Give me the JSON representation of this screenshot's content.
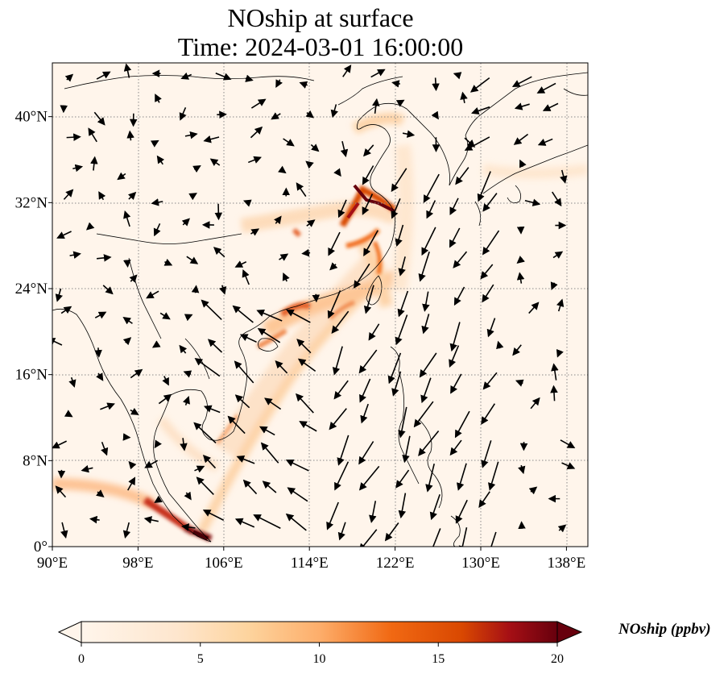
{
  "title": {
    "line1": "NOship at surface",
    "line2": "Time: 2024-03-01 16:00:00"
  },
  "map": {
    "lon_range": [
      90,
      140
    ],
    "lat_range": [
      0,
      45
    ],
    "x_ticks": [
      "90°E",
      "98°E",
      "106°E",
      "114°E",
      "122°E",
      "130°E",
      "138°E"
    ],
    "x_tick_values": [
      90,
      98,
      106,
      114,
      122,
      130,
      138
    ],
    "y_ticks": [
      "0°",
      "8°N",
      "16°N",
      "24°N",
      "32°N",
      "40°N"
    ],
    "y_tick_values": [
      0,
      8,
      16,
      24,
      32,
      40
    ],
    "gridlines": "dotted"
  },
  "colorbar": {
    "label": "NOship (ppbv)",
    "ticks": [
      "0",
      "5",
      "10",
      "15",
      "20"
    ],
    "range": [
      0,
      20
    ],
    "extend": "both",
    "colors": [
      "#fff5eb",
      "#fdd49e",
      "#fdae6b",
      "#f16913",
      "#d94801",
      "#a50f15",
      "#67000d"
    ]
  },
  "colors": {
    "background": "#fff5eb",
    "coast": "#000000"
  }
}
